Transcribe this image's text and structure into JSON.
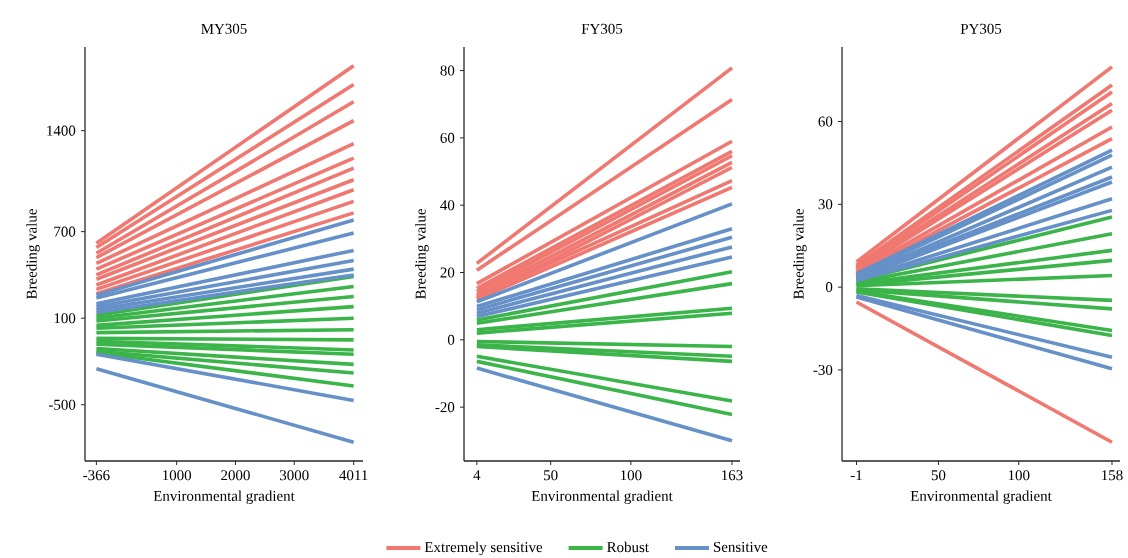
{
  "chart_data": [
    {
      "type": "line",
      "title": "MY305",
      "xlabel": "Environmental gradient",
      "ylabel": "Breeding value",
      "x": [
        -366,
        4011
      ],
      "xlim": [
        -560,
        4170
      ],
      "ylim": [
        -890,
        1980
      ],
      "xticks": [
        -366,
        1000,
        2000,
        3000,
        4011
      ],
      "yticks": [
        -500,
        100,
        700,
        1400
      ],
      "legend": "bottom",
      "series": [
        {
          "name": "Extremely sensitive",
          "color": "#f07870",
          "values": [
            620,
            1850
          ]
        },
        {
          "color": "#f07870",
          "values": [
            590,
            1720
          ]
        },
        {
          "color": "#f07870",
          "values": [
            550,
            1600
          ]
        },
        {
          "color": "#f07870",
          "values": [
            520,
            1470
          ]
        },
        {
          "color": "#f07870",
          "values": [
            480,
            1310
          ]
        },
        {
          "color": "#f07870",
          "values": [
            440,
            1210
          ]
        },
        {
          "color": "#f07870",
          "values": [
            400,
            1140
          ]
        },
        {
          "color": "#f07870",
          "values": [
            370,
            1060
          ]
        },
        {
          "color": "#f07870",
          "values": [
            330,
            990
          ]
        },
        {
          "color": "#f07870",
          "values": [
            300,
            910
          ]
        },
        {
          "color": "#f07870",
          "values": [
            270,
            830
          ]
        },
        {
          "name": "Robust",
          "color": "#3bb44a",
          "values": [
            120,
            390
          ]
        },
        {
          "color": "#3bb44a",
          "values": [
            100,
            320
          ]
        },
        {
          "color": "#3bb44a",
          "values": [
            80,
            250
          ]
        },
        {
          "color": "#3bb44a",
          "values": [
            50,
            180
          ]
        },
        {
          "color": "#3bb44a",
          "values": [
            30,
            100
          ]
        },
        {
          "color": "#3bb44a",
          "values": [
            0,
            20
          ]
        },
        {
          "color": "#3bb44a",
          "values": [
            -40,
            -50
          ]
        },
        {
          "color": "#3bb44a",
          "values": [
            -60,
            -120
          ]
        },
        {
          "color": "#3bb44a",
          "values": [
            -80,
            -150
          ]
        },
        {
          "color": "#3bb44a",
          "values": [
            -110,
            -220
          ]
        },
        {
          "color": "#3bb44a",
          "values": [
            -130,
            -280
          ]
        },
        {
          "color": "#3bb44a",
          "values": [
            -140,
            -370
          ]
        },
        {
          "name": "Sensitive",
          "color": "#6590c8",
          "values": [
            260,
            780
          ]
        },
        {
          "color": "#6590c8",
          "values": [
            240,
            690
          ]
        },
        {
          "color": "#6590c8",
          "values": [
            200,
            570
          ]
        },
        {
          "color": "#6590c8",
          "values": [
            180,
            500
          ]
        },
        {
          "color": "#6590c8",
          "values": [
            160,
            440
          ]
        },
        {
          "color": "#6590c8",
          "values": [
            140,
            400
          ]
        },
        {
          "color": "#6590c8",
          "values": [
            -150,
            -470
          ]
        },
        {
          "color": "#6590c8",
          "values": [
            -250,
            -760
          ]
        }
      ]
    },
    {
      "type": "line",
      "title": "FY305",
      "xlabel": "Environmental gradient",
      "ylabel": "Breeding value",
      "x": [
        4,
        163
      ],
      "xlim": [
        -4,
        168
      ],
      "ylim": [
        -36,
        87
      ],
      "xticks": [
        4,
        50,
        100,
        163
      ],
      "yticks": [
        -20,
        0,
        20,
        40,
        60,
        80
      ],
      "series": [
        {
          "color": "#f07870",
          "values": [
            22.7,
            80.8
          ]
        },
        {
          "color": "#f07870",
          "values": [
            20.7,
            71.4
          ]
        },
        {
          "color": "#f07870",
          "values": [
            16.7,
            59
          ]
        },
        {
          "color": "#f07870",
          "values": [
            15.3,
            56
          ]
        },
        {
          "color": "#f07870",
          "values": [
            14.3,
            54.7
          ]
        },
        {
          "color": "#f07870",
          "values": [
            13.3,
            52.7
          ]
        },
        {
          "color": "#f07870",
          "values": [
            12.3,
            51.2
          ]
        },
        {
          "color": "#f07870",
          "values": [
            12.8,
            47.3
          ]
        },
        {
          "color": "#f07870",
          "values": [
            12,
            45.3
          ]
        },
        {
          "color": "#3bb44a",
          "values": [
            5.9,
            20.2
          ]
        },
        {
          "color": "#3bb44a",
          "values": [
            4.9,
            16.7
          ]
        },
        {
          "color": "#3bb44a",
          "values": [
            3,
            9.4
          ]
        },
        {
          "color": "#3bb44a",
          "values": [
            2,
            7.9
          ]
        },
        {
          "color": "#3bb44a",
          "values": [
            -0.5,
            -2
          ]
        },
        {
          "color": "#3bb44a",
          "values": [
            -1.5,
            -4.9
          ]
        },
        {
          "color": "#3bb44a",
          "values": [
            -2,
            -6.4
          ]
        },
        {
          "color": "#3bb44a",
          "values": [
            -4.9,
            -18.2
          ]
        },
        {
          "color": "#3bb44a",
          "values": [
            -6.4,
            -22.2
          ]
        },
        {
          "color": "#6590c8",
          "values": [
            11.3,
            40.4
          ]
        },
        {
          "color": "#6590c8",
          "values": [
            9.9,
            33
          ]
        },
        {
          "color": "#6590c8",
          "values": [
            8.9,
            30.5
          ]
        },
        {
          "color": "#6590c8",
          "values": [
            7.9,
            27.6
          ]
        },
        {
          "color": "#6590c8",
          "values": [
            6.9,
            24.6
          ]
        },
        {
          "color": "#6590c8",
          "values": [
            -8.4,
            -30
          ]
        }
      ]
    },
    {
      "type": "line",
      "title": "PY305",
      "xlabel": "Environmental gradient",
      "ylabel": "Breeding value",
      "x": [
        -1,
        158
      ],
      "xlim": [
        -10,
        163
      ],
      "ylim": [
        -63,
        87
      ],
      "xticks": [
        -1,
        50,
        100,
        158
      ],
      "yticks": [
        -30,
        0,
        30,
        60
      ],
      "series": [
        {
          "color": "#f07870",
          "values": [
            9.1,
            79.8
          ]
        },
        {
          "color": "#f07870",
          "values": [
            7.9,
            73.2
          ]
        },
        {
          "color": "#f07870",
          "values": [
            7.3,
            70.7
          ]
        },
        {
          "color": "#f07870",
          "values": [
            6.7,
            66.5
          ]
        },
        {
          "color": "#f07870",
          "values": [
            6,
            64.1
          ]
        },
        {
          "color": "#f07870",
          "values": [
            5.4,
            58
          ]
        },
        {
          "color": "#f07870",
          "values": [
            4.8,
            53.8
          ]
        },
        {
          "color": "#f07870",
          "values": [
            -5.4,
            -56.2
          ]
        },
        {
          "color": "#3bb44a",
          "values": [
            2.4,
            25.4
          ]
        },
        {
          "color": "#3bb44a",
          "values": [
            1.8,
            19.3
          ]
        },
        {
          "color": "#3bb44a",
          "values": [
            1.2,
            13.3
          ]
        },
        {
          "color": "#3bb44a",
          "values": [
            0.8,
            9.7
          ]
        },
        {
          "color": "#3bb44a",
          "values": [
            0.5,
            4.2
          ]
        },
        {
          "color": "#3bb44a",
          "values": [
            -0.6,
            -4.8
          ]
        },
        {
          "color": "#3bb44a",
          "values": [
            -1,
            -7.9
          ]
        },
        {
          "color": "#3bb44a",
          "values": [
            -1.5,
            -15.7
          ]
        },
        {
          "color": "#3bb44a",
          "values": [
            -1.8,
            -17.5
          ]
        },
        {
          "color": "#6590c8",
          "values": [
            4.8,
            49.6
          ]
        },
        {
          "color": "#6590c8",
          "values": [
            4.2,
            47.8
          ]
        },
        {
          "color": "#6590c8",
          "values": [
            3.6,
            43.5
          ]
        },
        {
          "color": "#6590c8",
          "values": [
            3.4,
            39.9
          ]
        },
        {
          "color": "#6590c8",
          "values": [
            3,
            38.1
          ]
        },
        {
          "color": "#6590c8",
          "values": [
            2.7,
            32
          ]
        },
        {
          "color": "#6590c8",
          "values": [
            2.4,
            27.8
          ]
        },
        {
          "color": "#6590c8",
          "values": [
            -3,
            -25.4
          ]
        },
        {
          "color": "#6590c8",
          "values": [
            -3.6,
            -29.6
          ]
        }
      ]
    }
  ]
}
